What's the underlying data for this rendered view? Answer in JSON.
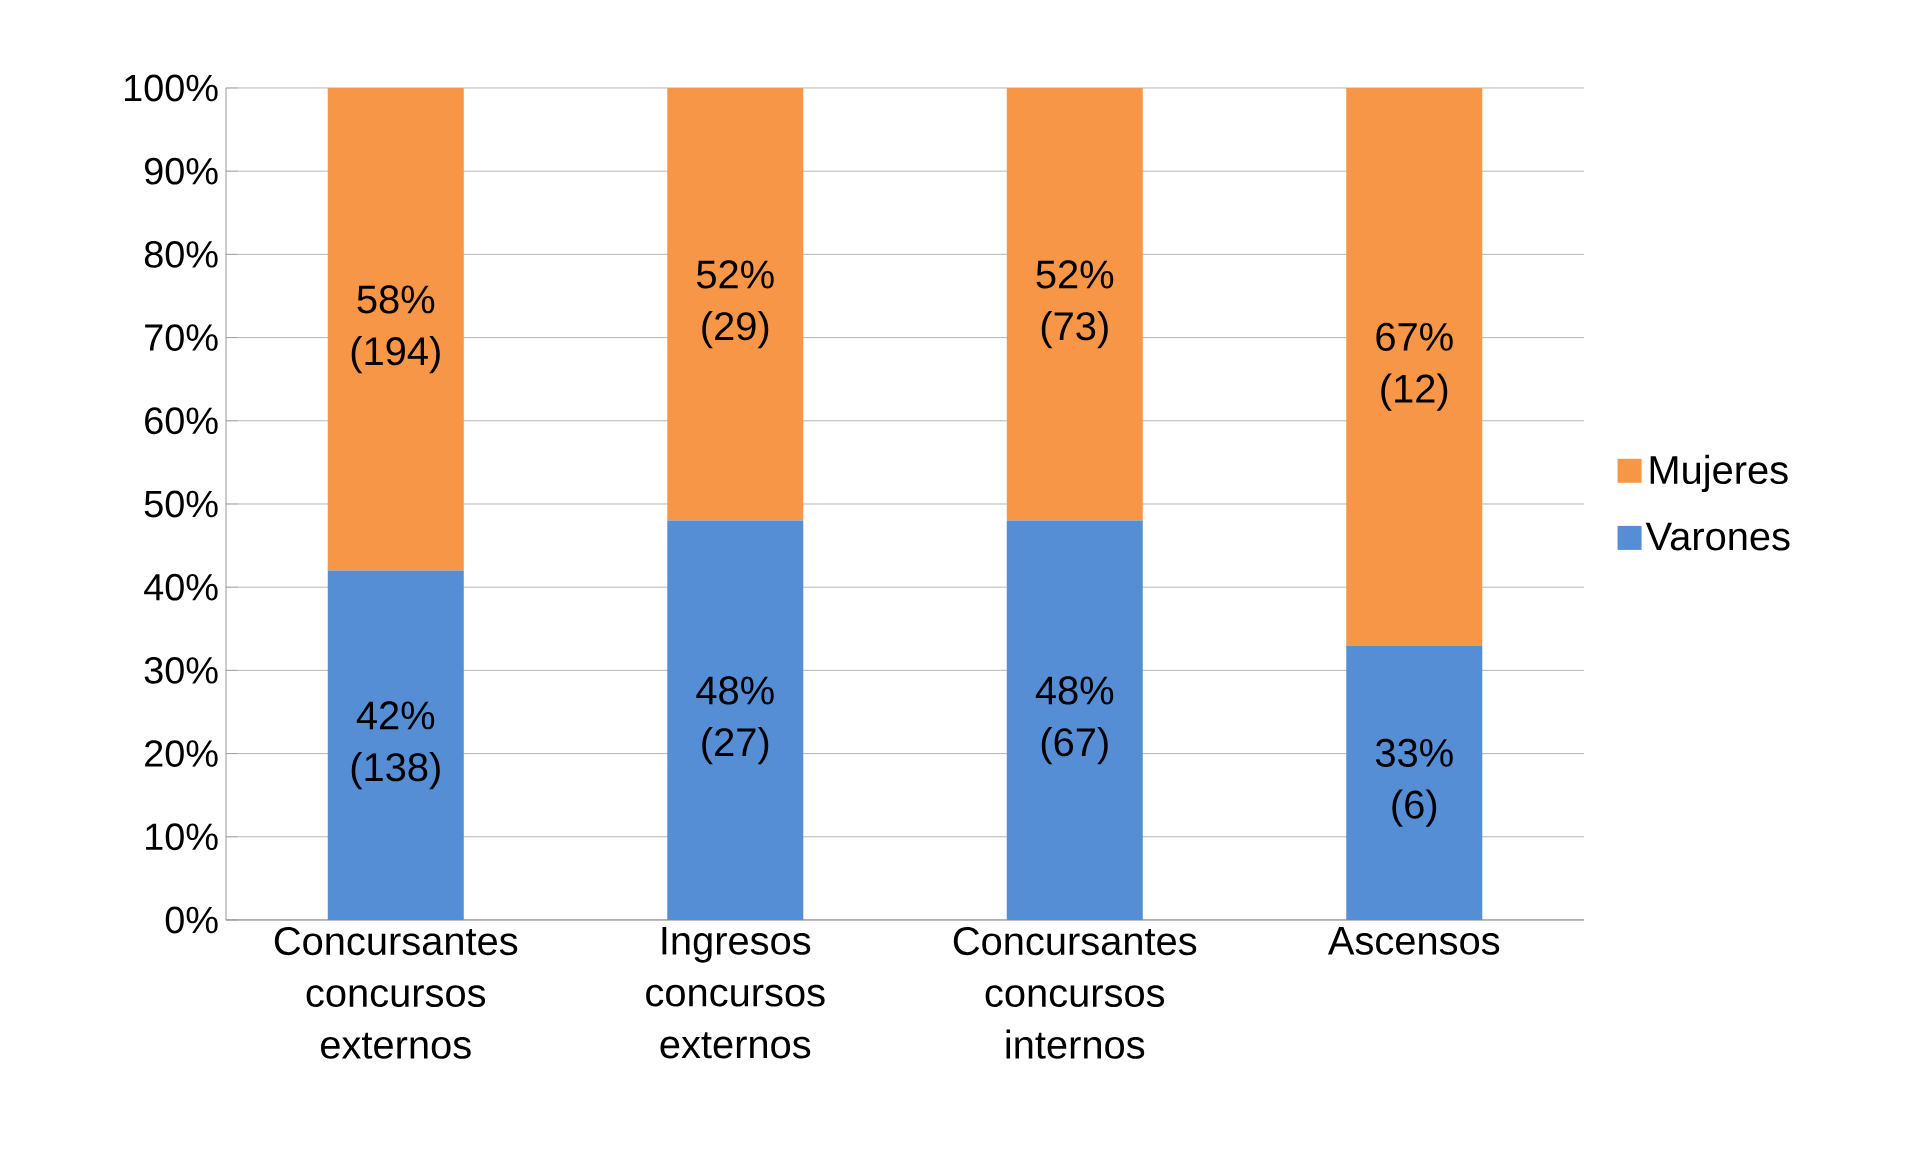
{
  "chart_data": {
    "type": "bar",
    "stacked": true,
    "categories": [
      "Concursantes concursos externos",
      "Ingresos concursos externos",
      "Concursantes concursos internos",
      "Ascensos"
    ],
    "series": [
      {
        "name": "Varones",
        "color": "#558ed5",
        "values": [
          42,
          48,
          48,
          33
        ],
        "value_labels": [
          "42% (138)",
          "48% (27)",
          "48% (67)",
          "33% (6)"
        ]
      },
      {
        "name": "Mujeres",
        "color": "#f79646",
        "values": [
          58,
          52,
          52,
          67
        ],
        "value_labels": [
          "58% (194)",
          "52% (29)",
          "52% (73)",
          "67% (12)"
        ]
      }
    ],
    "ylim": [
      0,
      100
    ],
    "yticks": [
      {
        "value": 0,
        "label": "0%"
      },
      {
        "value": 10,
        "label": "10%"
      },
      {
        "value": 20,
        "label": "20%"
      },
      {
        "value": 30,
        "label": "30%"
      },
      {
        "value": 40,
        "label": "40%"
      },
      {
        "value": 50,
        "label": "50%"
      },
      {
        "value": 60,
        "label": "60%"
      },
      {
        "value": 70,
        "label": "70%"
      },
      {
        "value": 80,
        "label": "80%"
      },
      {
        "value": 90,
        "label": "90%"
      },
      {
        "value": 100,
        "label": "100%"
      }
    ],
    "grid": "y",
    "legend": "right"
  }
}
